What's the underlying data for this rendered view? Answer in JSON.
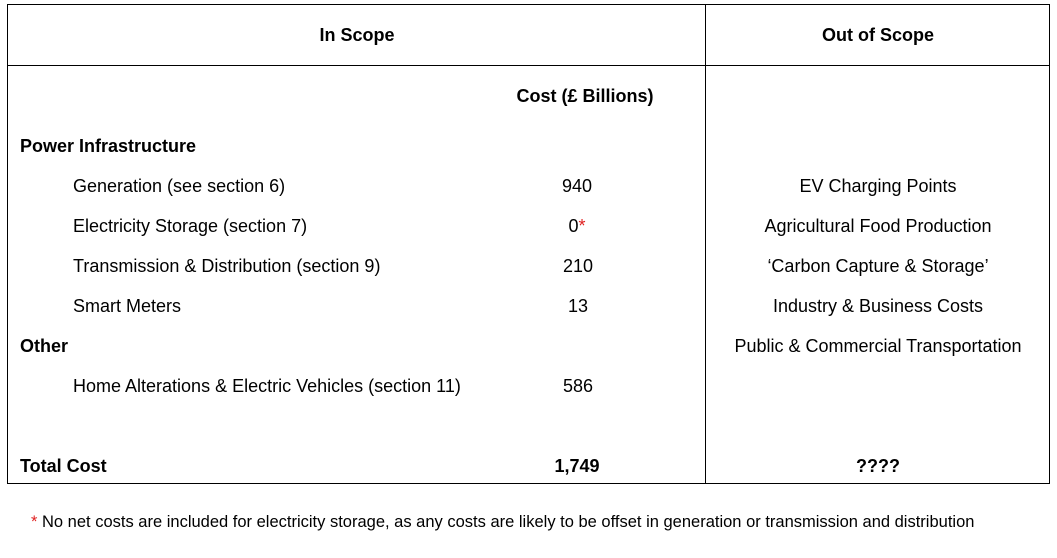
{
  "header": {
    "in_scope": "In Scope",
    "out_of_scope": "Out of Scope"
  },
  "cost_column_label": "Cost (£ Billions)",
  "sections": {
    "power": {
      "title": "Power Infrastructure",
      "rows": [
        {
          "label": "Generation (see section 6)",
          "value": "940",
          "marker": ""
        },
        {
          "label": "Electricity Storage (section 7)",
          "value": "0",
          "marker": "*"
        },
        {
          "label": "Transmission & Distribution (section 9)",
          "value": "210",
          "marker": ""
        },
        {
          "label": "Smart Meters",
          "value": "13",
          "marker": ""
        }
      ]
    },
    "other": {
      "title": "Other",
      "rows": [
        {
          "label": "Home Alterations & Electric Vehicles (section 11)",
          "value": "586",
          "marker": ""
        }
      ]
    }
  },
  "total": {
    "label": "Total Cost",
    "value": "1,749",
    "out_of_scope_value": "????"
  },
  "out_of_scope_items": [
    "EV Charging Points",
    "Agricultural Food Production",
    "‘Carbon Capture & Storage’",
    "Industry & Business Costs",
    "Public & Commercial Transportation"
  ],
  "footnote": {
    "marker": "*",
    "text": " No net costs are included for electricity storage, as any costs are likely to be offset in generation or transmission and distribution"
  },
  "colors": {
    "border": "#000000",
    "asterisk": "#e02020"
  }
}
